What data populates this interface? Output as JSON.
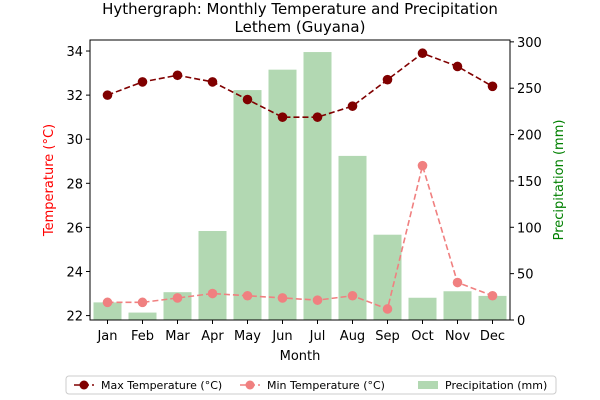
{
  "chart_data": {
    "type": "bar+line",
    "title": "Hythergraph: Monthly Temperature and Precipitation",
    "subtitle": "Lethem (Guyana)",
    "xlabel": "Month",
    "ylabel_left": "Temperature (°C)",
    "ylabel_right": "Precipitation (mm)",
    "categories": [
      "Jan",
      "Feb",
      "Mar",
      "Apr",
      "May",
      "Jun",
      "Jul",
      "Aug",
      "Sep",
      "Oct",
      "Nov",
      "Dec"
    ],
    "ylim_left": [
      21.8,
      34.5
    ],
    "ylim_right": [
      0,
      302
    ],
    "yticks_left": [
      22,
      24,
      26,
      28,
      30,
      32,
      34
    ],
    "yticks_right": [
      0,
      50,
      100,
      150,
      200,
      250,
      300
    ],
    "grid": false,
    "legend_position": "bottom",
    "series": [
      {
        "name": "Max Temperature (°C)",
        "kind": "line",
        "axis": "left",
        "color": "#800000",
        "values": [
          32.0,
          32.6,
          32.9,
          32.6,
          31.8,
          31.0,
          31.0,
          31.5,
          32.7,
          33.9,
          33.3,
          32.4
        ]
      },
      {
        "name": "Min Temperature (°C)",
        "kind": "line",
        "axis": "left",
        "color": "#f08080",
        "values": [
          22.6,
          22.6,
          22.8,
          23.0,
          22.9,
          22.8,
          22.7,
          22.9,
          22.3,
          28.8,
          23.5,
          22.9
        ]
      },
      {
        "name": "Precipitation (mm)",
        "kind": "bar",
        "axis": "right",
        "color": "#b2d8b2",
        "values": [
          19,
          8,
          30,
          96,
          248,
          270,
          289,
          177,
          92,
          24,
          31,
          26
        ]
      }
    ],
    "colors": {
      "left_axis": "#ff0000",
      "right_axis": "#008000"
    }
  }
}
